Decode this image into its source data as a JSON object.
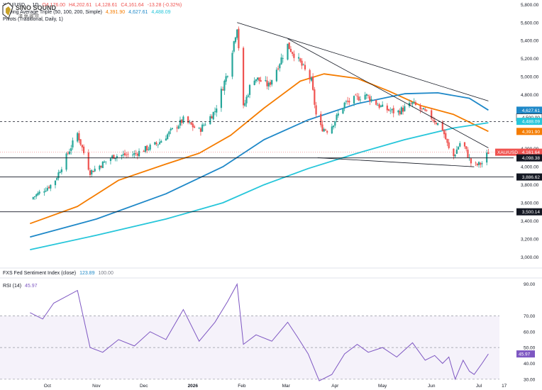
{
  "legend": {
    "symbol": "XAU/USD",
    "interval": "1D",
    "open": "O4,176.00",
    "high": "H4,202.61",
    "low": "L4,128.61",
    "close": "C4,161.64",
    "change": "-13.28 (-0.32%)",
    "ma_title": "Moving Average Triple (50, 100, 200, Simple)",
    "ma_values": [
      "4,391.90",
      "4,627.61",
      "4,488.09"
    ],
    "pivots_title": "Pivots (Traditional, Daily, 1)",
    "fed_title": "FXS Fed Sentiment Index (close)",
    "fed_values": [
      "123.89",
      "100.00"
    ],
    "rsi_title": "RSI (14)",
    "rsi_value": "45.97"
  },
  "colors": {
    "up": "#26a69a",
    "down": "#ef5350",
    "ma50": "#f57c00",
    "ma100": "#1e88c8",
    "ma200": "#26c6da",
    "rsi": "#7e57c2",
    "trendline": "#131722"
  },
  "watermark": {
    "text": "SINO SOUND",
    "sub": "漢 聲 國 際"
  },
  "chart_data": [
    {
      "type": "candlestick",
      "title": "XAU/USD, 1D",
      "xlabel": "",
      "ylabel": "",
      "x_ticks": [
        "Oct",
        "Nov",
        "Dec",
        "2026",
        "Feb",
        "Mar",
        "Apr",
        "May",
        "Jun",
        "Jul",
        "17"
      ],
      "y_ticks": [
        "5,800.00",
        "5,600.00",
        "5,400.00",
        "5,200.00",
        "5,000.00",
        "4,800.00",
        "4,600.00",
        "4,400.00",
        "4,200.00",
        "4,000.00",
        "3,800.00",
        "3,600.00",
        "3,400.00",
        "3,200.00",
        "3,000.00"
      ],
      "ylim": [
        2900,
        5850
      ],
      "grid": false,
      "price_path": [
        {
          "date": "2025-09-20",
          "price": 3640
        },
        {
          "date": "2025-10-05",
          "price": 3820
        },
        {
          "date": "2025-10-20",
          "price": 4370
        },
        {
          "date": "2025-10-28",
          "price": 3940
        },
        {
          "date": "2025-11-12",
          "price": 4120
        },
        {
          "date": "2025-11-25",
          "price": 4140
        },
        {
          "date": "2025-12-10",
          "price": 4260
        },
        {
          "date": "2025-12-26",
          "price": 4520
        },
        {
          "date": "2026-01-05",
          "price": 4400
        },
        {
          "date": "2026-01-15",
          "price": 4620
        },
        {
          "date": "2026-01-23",
          "price": 5050
        },
        {
          "date": "2026-01-29",
          "price": 5560
        },
        {
          "date": "2026-02-02",
          "price": 4650
        },
        {
          "date": "2026-02-08",
          "price": 5000
        },
        {
          "date": "2026-02-18",
          "price": 4900
        },
        {
          "date": "2026-03-02",
          "price": 5350
        },
        {
          "date": "2026-03-10",
          "price": 5150
        },
        {
          "date": "2026-03-17",
          "price": 4950
        },
        {
          "date": "2026-03-21",
          "price": 4450
        },
        {
          "date": "2026-03-28",
          "price": 4400
        },
        {
          "date": "2026-04-07",
          "price": 4700
        },
        {
          "date": "2026-04-20",
          "price": 4800
        },
        {
          "date": "2026-05-01",
          "price": 4650
        },
        {
          "date": "2026-05-10",
          "price": 4600
        },
        {
          "date": "2026-05-20",
          "price": 4700
        },
        {
          "date": "2026-06-01",
          "price": 4550
        },
        {
          "date": "2026-06-08",
          "price": 4420
        },
        {
          "date": "2026-06-14",
          "price": 4080
        },
        {
          "date": "2026-06-20",
          "price": 4300
        },
        {
          "date": "2026-06-27",
          "price": 4000
        },
        {
          "date": "2026-07-03",
          "price": 4040
        },
        {
          "date": "2026-07-07",
          "price": 4162
        }
      ],
      "ma_series": [
        {
          "name": "MA 50",
          "color": "#f57c00",
          "points": [
            {
              "date": "2025-09-20",
              "price": 3370
            },
            {
              "date": "2025-10-20",
              "price": 3560
            },
            {
              "date": "2025-11-15",
              "price": 3850
            },
            {
              "date": "2025-12-15",
              "price": 4030
            },
            {
              "date": "2026-01-05",
              "price": 4150
            },
            {
              "date": "2026-01-25",
              "price": 4350
            },
            {
              "date": "2026-02-15",
              "price": 4650
            },
            {
              "date": "2026-03-10",
              "price": 4950
            },
            {
              "date": "2026-03-25",
              "price": 5030
            },
            {
              "date": "2026-04-15",
              "price": 4980
            },
            {
              "date": "2026-05-05",
              "price": 4840
            },
            {
              "date": "2026-05-25",
              "price": 4680
            },
            {
              "date": "2026-06-15",
              "price": 4580
            },
            {
              "date": "2026-07-07",
              "price": 4392
            }
          ]
        },
        {
          "name": "MA 100",
          "color": "#1e88c8",
          "points": [
            {
              "date": "2025-09-20",
              "price": 3220
            },
            {
              "date": "2025-11-01",
              "price": 3420
            },
            {
              "date": "2025-12-15",
              "price": 3700
            },
            {
              "date": "2026-01-20",
              "price": 4000
            },
            {
              "date": "2026-02-15",
              "price": 4300
            },
            {
              "date": "2026-03-15",
              "price": 4520
            },
            {
              "date": "2026-04-15",
              "price": 4700
            },
            {
              "date": "2026-05-15",
              "price": 4810
            },
            {
              "date": "2026-06-05",
              "price": 4820
            },
            {
              "date": "2026-06-25",
              "price": 4760
            },
            {
              "date": "2026-07-07",
              "price": 4628
            }
          ]
        },
        {
          "name": "MA 200",
          "color": "#26c6da",
          "points": [
            {
              "date": "2025-09-20",
              "price": 3080
            },
            {
              "date": "2025-11-01",
              "price": 3240
            },
            {
              "date": "2025-12-15",
              "price": 3420
            },
            {
              "date": "2026-01-20",
              "price": 3600
            },
            {
              "date": "2026-02-15",
              "price": 3800
            },
            {
              "date": "2026-03-15",
              "price": 3980
            },
            {
              "date": "2026-04-15",
              "price": 4150
            },
            {
              "date": "2026-05-15",
              "price": 4300
            },
            {
              "date": "2026-06-15",
              "price": 4430
            },
            {
              "date": "2026-07-07",
              "price": 4488
            }
          ]
        }
      ],
      "price_levels": [
        {
          "label": "4,627.61",
          "color": "#1e88c8",
          "style": "tag"
        },
        {
          "label": "4,500.00",
          "color": "#131722",
          "style": "dashed"
        },
        {
          "label": "4,488.09",
          "color": "#26c6da",
          "style": "tag"
        },
        {
          "label": "4,391.90",
          "color": "#f57c00",
          "style": "tag"
        },
        {
          "label": "4,161.64",
          "color": "#ef5350",
          "style": "tag",
          "name": "XAU/USD"
        },
        {
          "label": "4,098.38",
          "color": "#131722",
          "style": "solid"
        },
        {
          "label": "3,886.62",
          "color": "#131722",
          "style": "solid"
        },
        {
          "label": "3,500.14",
          "color": "#131722",
          "style": "solid"
        }
      ],
      "trendlines": [
        {
          "from": {
            "date": "2026-01-29",
            "price": 5600
          },
          "to": {
            "date": "2026-07-07",
            "price": 4730
          }
        },
        {
          "from": {
            "date": "2026-03-02",
            "price": 5420
          },
          "to": {
            "date": "2026-07-07",
            "price": 4210
          }
        },
        {
          "from": {
            "date": "2026-03-21",
            "price": 4100
          },
          "to": {
            "date": "2026-06-28",
            "price": 4000
          }
        }
      ]
    },
    {
      "type": "line",
      "title": "RSI (14)",
      "y_ticks": [
        "90.00",
        "70.00",
        "60.00",
        "50.00",
        "40.00",
        "30.00"
      ],
      "ylim": [
        25,
        93
      ],
      "levels": [
        70,
        50,
        30
      ],
      "series": [
        {
          "name": "RSI (14)",
          "color": "#7e57c2",
          "points": [
            {
              "date": "2025-09-20",
              "value": 72
            },
            {
              "date": "2025-09-28",
              "value": 68
            },
            {
              "date": "2025-10-05",
              "value": 78
            },
            {
              "date": "2025-10-20",
              "value": 86
            },
            {
              "date": "2025-10-28",
              "value": 50
            },
            {
              "date": "2025-11-05",
              "value": 47
            },
            {
              "date": "2025-11-15",
              "value": 55
            },
            {
              "date": "2025-11-25",
              "value": 51
            },
            {
              "date": "2025-12-05",
              "value": 60
            },
            {
              "date": "2025-12-15",
              "value": 55
            },
            {
              "date": "2025-12-26",
              "value": 74
            },
            {
              "date": "2026-01-05",
              "value": 54
            },
            {
              "date": "2026-01-15",
              "value": 66
            },
            {
              "date": "2026-01-23",
              "value": 79
            },
            {
              "date": "2026-01-29",
              "value": 90
            },
            {
              "date": "2026-02-02",
              "value": 52
            },
            {
              "date": "2026-02-10",
              "value": 58
            },
            {
              "date": "2026-02-20",
              "value": 54
            },
            {
              "date": "2026-03-02",
              "value": 66
            },
            {
              "date": "2026-03-08",
              "value": 57
            },
            {
              "date": "2026-03-15",
              "value": 46
            },
            {
              "date": "2026-03-22",
              "value": 29
            },
            {
              "date": "2026-03-30",
              "value": 33
            },
            {
              "date": "2026-04-07",
              "value": 46
            },
            {
              "date": "2026-04-15",
              "value": 52
            },
            {
              "date": "2026-04-22",
              "value": 47
            },
            {
              "date": "2026-05-01",
              "value": 50
            },
            {
              "date": "2026-05-10",
              "value": 44
            },
            {
              "date": "2026-05-20",
              "value": 53
            },
            {
              "date": "2026-05-28",
              "value": 42
            },
            {
              "date": "2026-06-03",
              "value": 45
            },
            {
              "date": "2026-06-08",
              "value": 40
            },
            {
              "date": "2026-06-12",
              "value": 44
            },
            {
              "date": "2026-06-16",
              "value": 30
            },
            {
              "date": "2026-06-21",
              "value": 42
            },
            {
              "date": "2026-06-25",
              "value": 35
            },
            {
              "date": "2026-06-28",
              "value": 33
            },
            {
              "date": "2026-07-03",
              "value": 40
            },
            {
              "date": "2026-07-07",
              "value": 46
            }
          ]
        }
      ]
    }
  ]
}
